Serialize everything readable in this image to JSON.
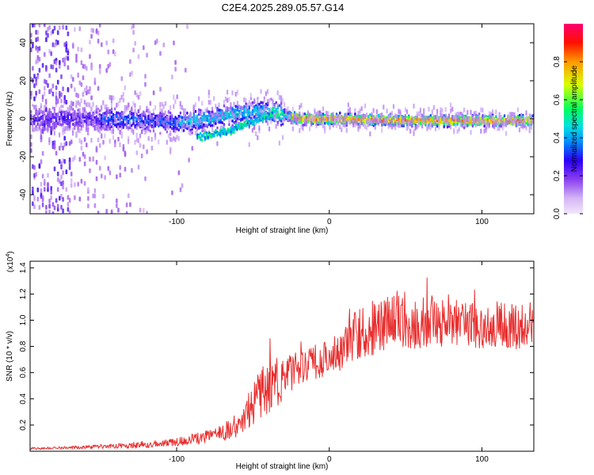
{
  "title": "C2E4.2025.289.05.57.G14",
  "chart_data": [
    {
      "type": "heatmap",
      "xlabel": "Height of straight line (km)",
      "ylabel": "Frequency (Hz)",
      "xlim": [
        -196,
        134
      ],
      "ylim": [
        -50,
        50
      ],
      "xticks": [
        -100,
        0,
        100
      ],
      "yticks": [
        -40,
        -20,
        0,
        20,
        40
      ],
      "colorbar": {
        "label": "Normalized spectral amplitude",
        "range": [
          0,
          1
        ],
        "ticks": [
          0.0,
          0.2,
          0.4,
          0.6,
          0.8
        ],
        "colors": [
          "#f2e6fa",
          "#a35ff0",
          "#2a00f5",
          "#00c0ff",
          "#00ff60",
          "#d8ff00",
          "#ff9900",
          "#ff0000",
          "#ff0070"
        ]
      },
      "ridge": {
        "x": [
          -196,
          -150,
          -120,
          -100,
          -80,
          -60,
          -45,
          -35,
          -30,
          -20,
          0,
          50,
          100,
          134
        ],
        "frequency": [
          0,
          0,
          -1,
          -2,
          0,
          3,
          4,
          3,
          2,
          0,
          0,
          -1,
          -1,
          -1
        ]
      },
      "branch": {
        "x": [
          -87,
          -75,
          -65,
          -55,
          -45,
          -38
        ],
        "frequency": [
          -10,
          -8,
          -6,
          -3,
          0,
          2
        ]
      }
    },
    {
      "type": "line",
      "xlabel": "Height of straight line (km)",
      "ylabel": "SNR (10 * v/v)",
      "multiplier": "(x10",
      "multiplier_exp": "4",
      "xlim": [
        -196,
        134
      ],
      "ylim": [
        0,
        1.45
      ],
      "xticks": [
        -100,
        0,
        100
      ],
      "yticks": [
        0.2,
        0.4,
        0.6,
        0.8,
        1.0,
        1.2,
        1.4
      ],
      "color": "#e83030",
      "series": [
        {
          "name": "SNR",
          "x": [
            -196,
            -180,
            -160,
            -140,
            -120,
            -100,
            -90,
            -80,
            -70,
            -60,
            -50,
            -45,
            -40,
            -35,
            -30,
            -25,
            -20,
            -15,
            -10,
            -5,
            0,
            5,
            10,
            15,
            20,
            25,
            30,
            35,
            40,
            45,
            50,
            60,
            70,
            80,
            90,
            100,
            110,
            120,
            130,
            134
          ],
          "values": [
            0.02,
            0.025,
            0.03,
            0.04,
            0.05,
            0.07,
            0.09,
            0.11,
            0.14,
            0.2,
            0.35,
            0.42,
            0.48,
            0.52,
            0.55,
            0.6,
            0.62,
            0.65,
            0.68,
            0.7,
            0.72,
            0.75,
            0.8,
            0.86,
            0.9,
            0.92,
            0.95,
            0.98,
            1.0,
            1.02,
            1.0,
            0.98,
            1.0,
            1.0,
            0.97,
            0.95,
            0.97,
            0.95,
            0.93,
            0.93
          ],
          "spread": [
            0.01,
            0.01,
            0.015,
            0.02,
            0.025,
            0.03,
            0.04,
            0.05,
            0.06,
            0.1,
            0.15,
            0.22,
            0.2,
            0.2,
            0.18,
            0.16,
            0.14,
            0.14,
            0.14,
            0.14,
            0.14,
            0.15,
            0.16,
            0.18,
            0.2,
            0.2,
            0.22,
            0.22,
            0.22,
            0.22,
            0.22,
            0.2,
            0.2,
            0.2,
            0.18,
            0.18,
            0.18,
            0.17,
            0.16,
            0.16
          ]
        }
      ]
    }
  ]
}
